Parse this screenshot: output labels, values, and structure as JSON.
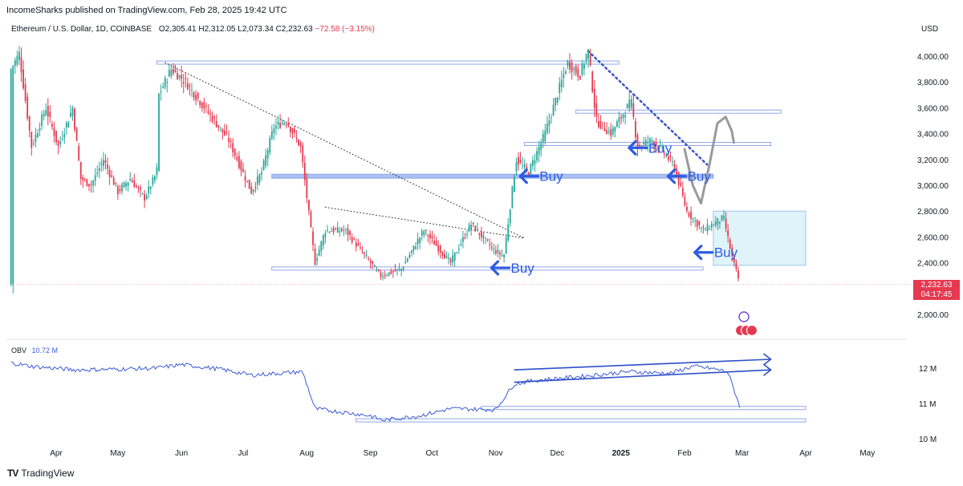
{
  "header": {
    "credit": "IncomeSharks published on TradingView.com, Feb 28, 2025 19:42 UTC",
    "symbol": "Ethereum / U.S. Dollar, 1D, COINBASE",
    "open": "O2,305.41",
    "high": "H2,312.05",
    "low": "L2,073.34",
    "close": "C2,232.63",
    "change": "−72.58 (−3.15%)",
    "currency": "USD"
  },
  "price_tag": {
    "price": "2,232.63",
    "countdown": "04:17:45"
  },
  "obv": {
    "label": "OBV",
    "value": "10.72 M"
  },
  "brand": {
    "name": "TradingView",
    "logo": "TV"
  },
  "colors": {
    "up": "#26a69a",
    "down": "#e53950",
    "zone": "#8fa8e8",
    "arrow": "#2d5be3",
    "obv_line": "#3b5bd6"
  },
  "chart_data": [
    {
      "type": "candlestick",
      "title": "Ethereum / U.S. Dollar, 1D, COINBASE",
      "y_axis_label": "USD",
      "y_ticks": [
        {
          "value": 4000,
          "label": "4,000.00"
        },
        {
          "value": 3800,
          "label": "3,800.00"
        },
        {
          "value": 3600,
          "label": "3,600.00"
        },
        {
          "value": 3400,
          "label": "3,400.00"
        },
        {
          "value": 3200,
          "label": "3,200.00"
        },
        {
          "value": 3000,
          "label": "3,000.00"
        },
        {
          "value": 2800,
          "label": "2,800.00"
        },
        {
          "value": 2600,
          "label": "2,600.00"
        },
        {
          "value": 2400,
          "label": "2,400.00"
        },
        {
          "value": 2000,
          "label": "2,000.00"
        }
      ],
      "x_ticks": [
        {
          "date": "2024-04-01",
          "label": "Apr"
        },
        {
          "date": "2024-05-01",
          "label": "May"
        },
        {
          "date": "2024-06-01",
          "label": "Jun"
        },
        {
          "date": "2024-07-01",
          "label": "Jul"
        },
        {
          "date": "2024-08-01",
          "label": "Aug"
        },
        {
          "date": "2024-09-01",
          "label": "Sep"
        },
        {
          "date": "2024-10-01",
          "label": "Oct"
        },
        {
          "date": "2024-11-01",
          "label": "Nov"
        },
        {
          "date": "2024-12-01",
          "label": "Dec"
        },
        {
          "date": "2025-01-01",
          "label": "2025"
        },
        {
          "date": "2025-02-01",
          "label": "Feb"
        },
        {
          "date": "2025-03-01",
          "label": "Mar"
        },
        {
          "date": "2025-04-01",
          "label": "Apr"
        },
        {
          "date": "2025-05-01",
          "label": "May"
        }
      ],
      "price_path": [
        {
          "date": "2024-03-10",
          "price": 3900
        },
        {
          "date": "2024-03-14",
          "price": 4020
        },
        {
          "date": "2024-03-20",
          "price": 3300
        },
        {
          "date": "2024-03-27",
          "price": 3600
        },
        {
          "date": "2024-04-02",
          "price": 3300
        },
        {
          "date": "2024-04-09",
          "price": 3600
        },
        {
          "date": "2024-04-13",
          "price": 3050
        },
        {
          "date": "2024-04-18",
          "price": 3000
        },
        {
          "date": "2024-04-24",
          "price": 3200
        },
        {
          "date": "2024-05-01",
          "price": 2950
        },
        {
          "date": "2024-05-07",
          "price": 3050
        },
        {
          "date": "2024-05-14",
          "price": 2900
        },
        {
          "date": "2024-05-20",
          "price": 3100
        },
        {
          "date": "2024-05-21",
          "price": 3700
        },
        {
          "date": "2024-05-27",
          "price": 3900
        },
        {
          "date": "2024-06-03",
          "price": 3800
        },
        {
          "date": "2024-06-10",
          "price": 3650
        },
        {
          "date": "2024-06-17",
          "price": 3500
        },
        {
          "date": "2024-06-24",
          "price": 3350
        },
        {
          "date": "2024-07-05",
          "price": 2950
        },
        {
          "date": "2024-07-10",
          "price": 3100
        },
        {
          "date": "2024-07-16",
          "price": 3450
        },
        {
          "date": "2024-07-22",
          "price": 3500
        },
        {
          "date": "2024-07-29",
          "price": 3300
        },
        {
          "date": "2024-08-05",
          "price": 2400
        },
        {
          "date": "2024-08-10",
          "price": 2650
        },
        {
          "date": "2024-08-20",
          "price": 2650
        },
        {
          "date": "2024-08-27",
          "price": 2500
        },
        {
          "date": "2024-09-06",
          "price": 2300
        },
        {
          "date": "2024-09-16",
          "price": 2350
        },
        {
          "date": "2024-09-27",
          "price": 2650
        },
        {
          "date": "2024-10-10",
          "price": 2400
        },
        {
          "date": "2024-10-20",
          "price": 2700
        },
        {
          "date": "2024-10-31",
          "price": 2500
        },
        {
          "date": "2024-11-05",
          "price": 2450
        },
        {
          "date": "2024-11-11",
          "price": 3200
        },
        {
          "date": "2024-11-17",
          "price": 3100
        },
        {
          "date": "2024-11-25",
          "price": 3400
        },
        {
          "date": "2024-12-06",
          "price": 3950
        },
        {
          "date": "2024-12-12",
          "price": 3850
        },
        {
          "date": "2024-12-16",
          "price": 4050
        },
        {
          "date": "2024-12-20",
          "price": 3500
        },
        {
          "date": "2024-12-27",
          "price": 3400
        },
        {
          "date": "2025-01-06",
          "price": 3650
        },
        {
          "date": "2025-01-09",
          "price": 3300
        },
        {
          "date": "2025-01-16",
          "price": 3350
        },
        {
          "date": "2025-01-22",
          "price": 3250
        },
        {
          "date": "2025-01-27",
          "price": 3150
        },
        {
          "date": "2025-02-02",
          "price": 2800
        },
        {
          "date": "2025-02-10",
          "price": 2650
        },
        {
          "date": "2025-02-20",
          "price": 2750
        },
        {
          "date": "2025-02-24",
          "price": 2450
        },
        {
          "date": "2025-02-28",
          "price": 2232
        }
      ],
      "horizontal_zones": [
        {
          "from": "2024-05-20",
          "to": "2024-12-31",
          "price": 3950
        },
        {
          "from": "2024-07-15",
          "to": "2025-02-15",
          "price": 3070
        },
        {
          "from": "2024-07-15",
          "to": "2025-02-10",
          "price": 2355
        },
        {
          "from": "2024-11-15",
          "to": "2025-03-15",
          "price": 3320
        },
        {
          "from": "2024-12-10",
          "to": "2025-03-20",
          "price": 3570
        }
      ],
      "target_box": {
        "from": "2025-02-15",
        "to": "2025-04-01",
        "low": 2380,
        "high": 2800
      },
      "trendlines": [
        {
          "style": "dotted",
          "from": {
            "date": "2024-05-24",
            "price": 3950
          },
          "to": {
            "date": "2024-11-15",
            "price": 2590
          }
        },
        {
          "style": "dotted",
          "from": {
            "date": "2024-08-10",
            "price": 2830
          },
          "to": {
            "date": "2024-11-15",
            "price": 2590
          }
        },
        {
          "style": "dotted-bold",
          "from": {
            "date": "2024-12-16",
            "price": 4040
          },
          "to": {
            "date": "2025-02-12",
            "price": 3160
          }
        }
      ],
      "projection_path": [
        {
          "date": "2025-02-01",
          "price": 3280
        },
        {
          "date": "2025-02-05",
          "price": 3000
        },
        {
          "date": "2025-02-09",
          "price": 2860
        },
        {
          "date": "2025-02-13",
          "price": 3150
        },
        {
          "date": "2025-02-17",
          "price": 3480
        },
        {
          "date": "2025-02-21",
          "price": 3530
        },
        {
          "date": "2025-02-24",
          "price": 3420
        },
        {
          "date": "2025-02-25",
          "price": 3330
        }
      ],
      "annotations": [
        {
          "text": "Buy",
          "date": "2024-11-13",
          "price": 3070
        },
        {
          "text": "Buy",
          "date": "2025-01-05",
          "price": 3290
        },
        {
          "text": "Buy",
          "date": "2025-01-24",
          "price": 3070
        },
        {
          "text": "Buy",
          "date": "2024-10-30",
          "price": 2360
        },
        {
          "text": "Buy",
          "date": "2025-02-06",
          "price": 2480
        }
      ]
    },
    {
      "type": "line",
      "series": [
        {
          "name": "OBV",
          "values": [
            {
              "date": "2024-03-10",
              "value": 12.15
            },
            {
              "date": "2024-03-20",
              "value": 12.05
            },
            {
              "date": "2024-04-10",
              "value": 11.95
            },
            {
              "date": "2024-05-01",
              "value": 11.97
            },
            {
              "date": "2024-05-20",
              "value": 12.0
            },
            {
              "date": "2024-06-01",
              "value": 12.1
            },
            {
              "date": "2024-06-20",
              "value": 11.97
            },
            {
              "date": "2024-07-05",
              "value": 11.8
            },
            {
              "date": "2024-07-30",
              "value": 11.9
            },
            {
              "date": "2024-08-05",
              "value": 10.85
            },
            {
              "date": "2024-09-01",
              "value": 10.65
            },
            {
              "date": "2024-09-07",
              "value": 10.52
            },
            {
              "date": "2024-09-25",
              "value": 10.65
            },
            {
              "date": "2024-10-10",
              "value": 10.85
            },
            {
              "date": "2024-11-01",
              "value": 10.82
            },
            {
              "date": "2024-11-10",
              "value": 11.55
            },
            {
              "date": "2024-11-20",
              "value": 11.65
            },
            {
              "date": "2024-12-10",
              "value": 11.75
            },
            {
              "date": "2025-01-05",
              "value": 11.9
            },
            {
              "date": "2025-01-25",
              "value": 11.85
            },
            {
              "date": "2025-02-05",
              "value": 12.05
            },
            {
              "date": "2025-02-15",
              "value": 11.98
            },
            {
              "date": "2025-02-22",
              "value": 11.9
            },
            {
              "date": "2025-02-28",
              "value": 10.9
            }
          ]
        }
      ],
      "y_ticks": [
        {
          "value": 12,
          "label": "12 M"
        },
        {
          "value": 11,
          "label": "11 M"
        },
        {
          "value": 10,
          "label": "10 M"
        }
      ],
      "channel_lines": [
        {
          "from": {
            "date": "2024-11-10",
            "value": 11.95
          },
          "to": {
            "date": "2025-03-15",
            "value": 12.25
          }
        },
        {
          "from": {
            "date": "2024-11-10",
            "value": 11.6
          },
          "to": {
            "date": "2025-03-15",
            "value": 11.95
          }
        }
      ],
      "support_zones": [
        {
          "from": "2024-10-25",
          "to": "2025-04-01",
          "value": 10.87
        },
        {
          "from": "2024-08-25",
          "to": "2025-04-01",
          "value": 10.52
        }
      ]
    }
  ]
}
